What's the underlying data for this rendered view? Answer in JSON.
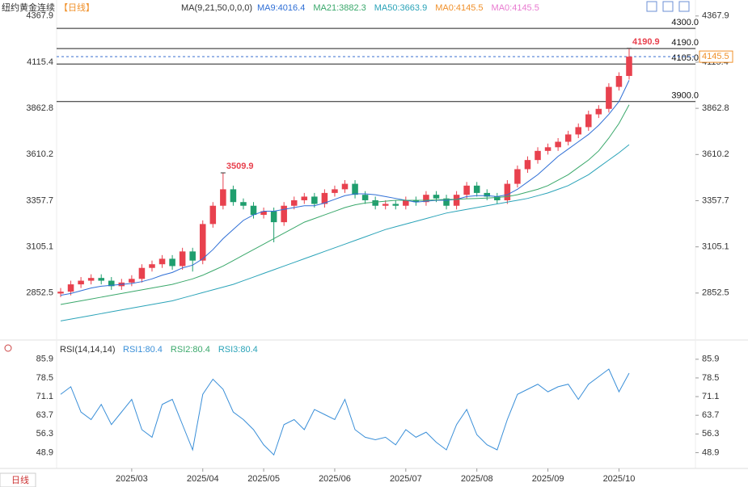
{
  "chart_data": [
    {
      "type": "candlestick",
      "title": "纽约黄金连续",
      "period": "【日线】",
      "indicator": "MA(9,21,50,0,0,0)",
      "categories": [
        null,
        null,
        null,
        null,
        null,
        null,
        null,
        "2025/03",
        null,
        null,
        null,
        null,
        null,
        null,
        "2025/04",
        null,
        null,
        null,
        null,
        null,
        "2025/05",
        null,
        null,
        null,
        null,
        null,
        null,
        "2025/06",
        null,
        null,
        null,
        null,
        null,
        null,
        "2025/07",
        null,
        null,
        null,
        null,
        null,
        null,
        "2025/08",
        null,
        null,
        null,
        null,
        null,
        null,
        "2025/09",
        null,
        null,
        null,
        null,
        null,
        null,
        "2025/10",
        null
      ],
      "open": [
        2850,
        2860,
        2900,
        2920,
        2935,
        2920,
        2890,
        2910,
        2930,
        2990,
        3010,
        3040,
        3000,
        3080,
        3030,
        3230,
        3330,
        3420,
        3350,
        3330,
        3280,
        3300,
        3240,
        3330,
        3360,
        3380,
        3340,
        3400,
        3420,
        3450,
        3390,
        3360,
        3330,
        3340,
        3330,
        3360,
        3350,
        3390,
        3370,
        3330,
        3390,
        3440,
        3400,
        3380,
        3360,
        3450,
        3530,
        3580,
        3630,
        3650,
        3680,
        3720,
        3760,
        3830,
        3860,
        3980,
        4040
      ],
      "high": [
        2880,
        2920,
        2940,
        2955,
        2955,
        2940,
        2930,
        2950,
        3010,
        3030,
        3060,
        3060,
        3100,
        3100,
        3250,
        3350,
        3509.9,
        3440,
        3370,
        3350,
        3320,
        3320,
        3350,
        3380,
        3400,
        3400,
        3420,
        3440,
        3470,
        3470,
        3410,
        3380,
        3360,
        3360,
        3380,
        3380,
        3410,
        3410,
        3390,
        3410,
        3460,
        3460,
        3420,
        3400,
        3470,
        3550,
        3600,
        3650,
        3670,
        3700,
        3740,
        3780,
        3850,
        3880,
        4000,
        4060,
        4190.9
      ],
      "low": [
        2830,
        2840,
        2880,
        2900,
        2900,
        2870,
        2870,
        2890,
        2910,
        2970,
        2990,
        2980,
        2980,
        2970,
        3010,
        3210,
        3310,
        3330,
        3310,
        3260,
        3260,
        3130,
        3220,
        3310,
        3340,
        3320,
        3320,
        3380,
        3400,
        3370,
        3340,
        3310,
        3310,
        3310,
        3310,
        3330,
        3330,
        3350,
        3310,
        3310,
        3370,
        3380,
        3360,
        3340,
        3340,
        3430,
        3510,
        3560,
        3610,
        3630,
        3660,
        3700,
        3740,
        3810,
        3840,
        3960,
        4020
      ],
      "close": [
        2860,
        2900,
        2920,
        2935,
        2920,
        2890,
        2910,
        2930,
        2990,
        3010,
        3040,
        3000,
        3080,
        3030,
        3230,
        3330,
        3420,
        3350,
        3330,
        3280,
        3300,
        3240,
        3330,
        3360,
        3380,
        3340,
        3400,
        3420,
        3450,
        3390,
        3360,
        3330,
        3340,
        3330,
        3360,
        3350,
        3390,
        3370,
        3330,
        3390,
        3440,
        3400,
        3380,
        3360,
        3450,
        3530,
        3580,
        3630,
        3650,
        3680,
        3720,
        3760,
        3830,
        3860,
        3980,
        4040,
        4145.5
      ],
      "up_color": "#e8414e",
      "down_color": "#1f9e6e",
      "series": [
        {
          "name": "MA9:4016.4",
          "color": "#2f6fd6",
          "values": [
            2840,
            2850,
            2865,
            2880,
            2890,
            2895,
            2900,
            2905,
            2915,
            2930,
            2950,
            2965,
            2990,
            3005,
            3040,
            3090,
            3150,
            3200,
            3250,
            3280,
            3300,
            3300,
            3310,
            3320,
            3330,
            3330,
            3345,
            3365,
            3385,
            3395,
            3395,
            3390,
            3380,
            3370,
            3360,
            3350,
            3355,
            3360,
            3360,
            3365,
            3380,
            3385,
            3385,
            3380,
            3390,
            3420,
            3460,
            3500,
            3550,
            3600,
            3640,
            3680,
            3720,
            3770,
            3830,
            3900,
            4016.4
          ]
        },
        {
          "name": "MA21:3882.3",
          "color": "#3aa86b",
          "values": [
            2790,
            2800,
            2810,
            2820,
            2830,
            2840,
            2850,
            2860,
            2870,
            2880,
            2890,
            2900,
            2915,
            2930,
            2950,
            2975,
            3000,
            3030,
            3060,
            3090,
            3120,
            3150,
            3180,
            3210,
            3240,
            3260,
            3280,
            3300,
            3320,
            3335,
            3345,
            3350,
            3355,
            3360,
            3360,
            3360,
            3360,
            3362,
            3365,
            3365,
            3368,
            3370,
            3372,
            3375,
            3380,
            3390,
            3405,
            3420,
            3440,
            3470,
            3500,
            3540,
            3580,
            3630,
            3700,
            3780,
            3882.3
          ]
        },
        {
          "name": "MA50:3663.9",
          "color": "#2aa3b8",
          "values": [
            2700,
            2710,
            2720,
            2730,
            2740,
            2750,
            2760,
            2770,
            2780,
            2790,
            2800,
            2810,
            2825,
            2840,
            2855,
            2870,
            2885,
            2900,
            2920,
            2940,
            2960,
            2980,
            3000,
            3020,
            3040,
            3060,
            3080,
            3100,
            3120,
            3140,
            3160,
            3180,
            3200,
            3215,
            3230,
            3245,
            3260,
            3275,
            3290,
            3300,
            3310,
            3320,
            3330,
            3340,
            3350,
            3360,
            3370,
            3385,
            3400,
            3420,
            3440,
            3470,
            3500,
            3540,
            3580,
            3620,
            3663.9
          ]
        }
      ],
      "extra_legend": [
        {
          "name": "MA0:4145.5",
          "color": "#f0902a"
        },
        {
          "name": "MA0:4145.5",
          "color": "#e87ad0"
        }
      ],
      "levels": [
        {
          "value": 4300,
          "label": "4300.0"
        },
        {
          "value": 4190,
          "label": "4190.0"
        },
        {
          "value": 4105,
          "label": "4105.0"
        },
        {
          "value": 3900,
          "label": "3900.0"
        }
      ],
      "ylim": [
        2600,
        4420
      ],
      "yticks": [
        4367.9,
        4115.4,
        3862.8,
        3610.2,
        3357.7,
        3105.1,
        2852.5
      ],
      "period_tab": "日线"
    },
    {
      "type": "line",
      "title": "RSI(14,14,14)",
      "series": [
        {
          "name": "RSI1:80.4",
          "color": "#3a8fd8",
          "values": [
            72,
            75,
            65,
            62,
            68,
            60,
            65,
            70,
            58,
            55,
            68,
            70,
            60,
            50,
            72,
            78,
            74,
            65,
            62,
            58,
            52,
            48,
            60,
            62,
            58,
            66,
            64,
            62,
            70,
            58,
            55,
            54,
            55,
            52,
            58,
            55,
            57,
            53,
            50,
            60,
            66,
            56,
            52,
            50,
            62,
            72,
            74,
            76,
            73,
            75,
            76,
            70,
            76,
            79,
            82,
            73,
            80.4
          ]
        }
      ],
      "extra_legend": [
        {
          "name": "RSI2:80.4",
          "color": "#3aa86b"
        },
        {
          "name": "RSI3:80.4",
          "color": "#2aa3b8"
        }
      ],
      "ylim": [
        42,
        90
      ],
      "yticks": [
        85.9,
        78.5,
        71.1,
        63.7,
        56.3,
        48.9
      ]
    }
  ]
}
